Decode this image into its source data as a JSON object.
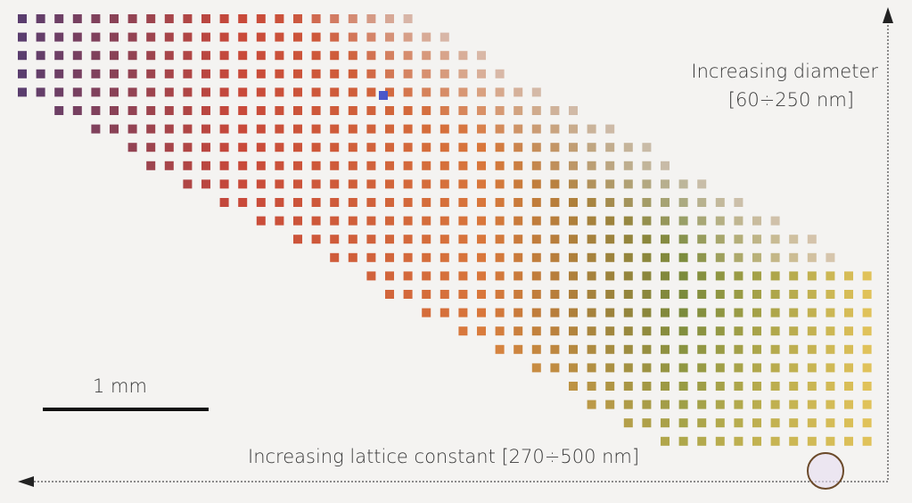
{
  "annotations": {
    "diameter_title": "Increasing diameter",
    "diameter_range": "[60÷250 nm]",
    "lattice_label": "Increasing lattice constant [270÷500 nm]",
    "scale_label": "1 mm"
  },
  "colors": {
    "background": "#f4f3f1",
    "axis": "#222222",
    "palette_top_left": "#5a3d6e",
    "palette_blue": "#4a57c9",
    "palette_red": "#c8483a",
    "palette_orange": "#d9783b",
    "palette_green": "#7a8a3c",
    "palette_yellow": "#e0c25a",
    "pad_fill": "#d9c8c2"
  }
}
